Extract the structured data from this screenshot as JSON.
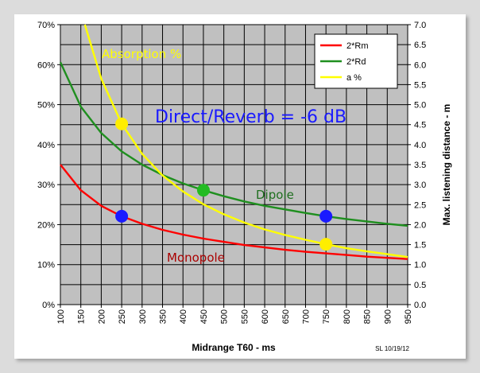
{
  "chart_data": {
    "type": "line",
    "title": "Direct/Reverb = -6 dB",
    "xlabel": "Midrange T60 - ms",
    "ylabel_left": "",
    "ylabel_right": "Max. listening distance - m",
    "credit": "SL 10/19/12",
    "xlim": [
      100,
      950
    ],
    "ylim_left": [
      0,
      70
    ],
    "ylim_right": [
      0,
      7
    ],
    "x_ticks": [
      100,
      150,
      200,
      250,
      300,
      350,
      400,
      450,
      500,
      550,
      600,
      650,
      700,
      750,
      800,
      850,
      900,
      950
    ],
    "y_left_ticks": [
      "0%",
      "10%",
      "20%",
      "30%",
      "40%",
      "50%",
      "60%",
      "70%"
    ],
    "y_right_ticks": [
      "0.0",
      "0.5",
      "1.0",
      "1.5",
      "2.0",
      "2.5",
      "3.0",
      "3.5",
      "4.0",
      "4.5",
      "5.0",
      "5.5",
      "6.0",
      "6.5",
      "7.0"
    ],
    "series": [
      {
        "name": "2*Rm",
        "color": "#ff0000",
        "axis": "right",
        "x": [
          100,
          150,
          200,
          250,
          300,
          350,
          400,
          450,
          500,
          550,
          600,
          650,
          700,
          750,
          800,
          850,
          900,
          950
        ],
        "values": [
          3.5,
          2.86,
          2.47,
          2.21,
          2.02,
          1.87,
          1.75,
          1.65,
          1.57,
          1.49,
          1.43,
          1.37,
          1.32,
          1.28,
          1.24,
          1.2,
          1.17,
          1.14
        ]
      },
      {
        "name": "2*Rd",
        "color": "#1f8f1f",
        "axis": "right",
        "x": [
          100,
          150,
          200,
          250,
          300,
          350,
          400,
          450,
          500,
          550,
          600,
          650,
          700,
          750,
          800,
          850,
          900,
          950
        ],
        "values": [
          6.06,
          4.95,
          4.29,
          3.83,
          3.5,
          3.24,
          3.03,
          2.86,
          2.71,
          2.58,
          2.47,
          2.38,
          2.29,
          2.21,
          2.14,
          2.08,
          2.02,
          1.97
        ]
      },
      {
        "name": "a %",
        "color": "#ffff00",
        "axis": "left",
        "x": [
          160,
          200,
          250,
          300,
          350,
          400,
          450,
          500,
          550,
          600,
          650,
          700,
          750,
          800,
          850,
          900,
          950
        ],
        "values": [
          70,
          56.5,
          45.2,
          37.7,
          32.3,
          28.3,
          25.1,
          22.6,
          20.5,
          18.8,
          17.4,
          16.2,
          15.1,
          14.1,
          13.3,
          12.6,
          11.9
        ]
      }
    ],
    "markers": [
      {
        "x": 250,
        "y_right": 2.21,
        "color": "#1a1aff"
      },
      {
        "x": 750,
        "y_right": 2.21,
        "color": "#1a1aff"
      },
      {
        "x": 450,
        "y_right": 2.86,
        "color": "#22bb22"
      },
      {
        "x": 250,
        "y_left": 45.2,
        "color": "#ffee00"
      },
      {
        "x": 750,
        "y_left": 15.1,
        "color": "#ffee00"
      }
    ],
    "annotations": {
      "absorption": "Absorption %",
      "dipole": "Dipole",
      "monopole": "Monopole"
    },
    "legend_position": "top-right"
  }
}
